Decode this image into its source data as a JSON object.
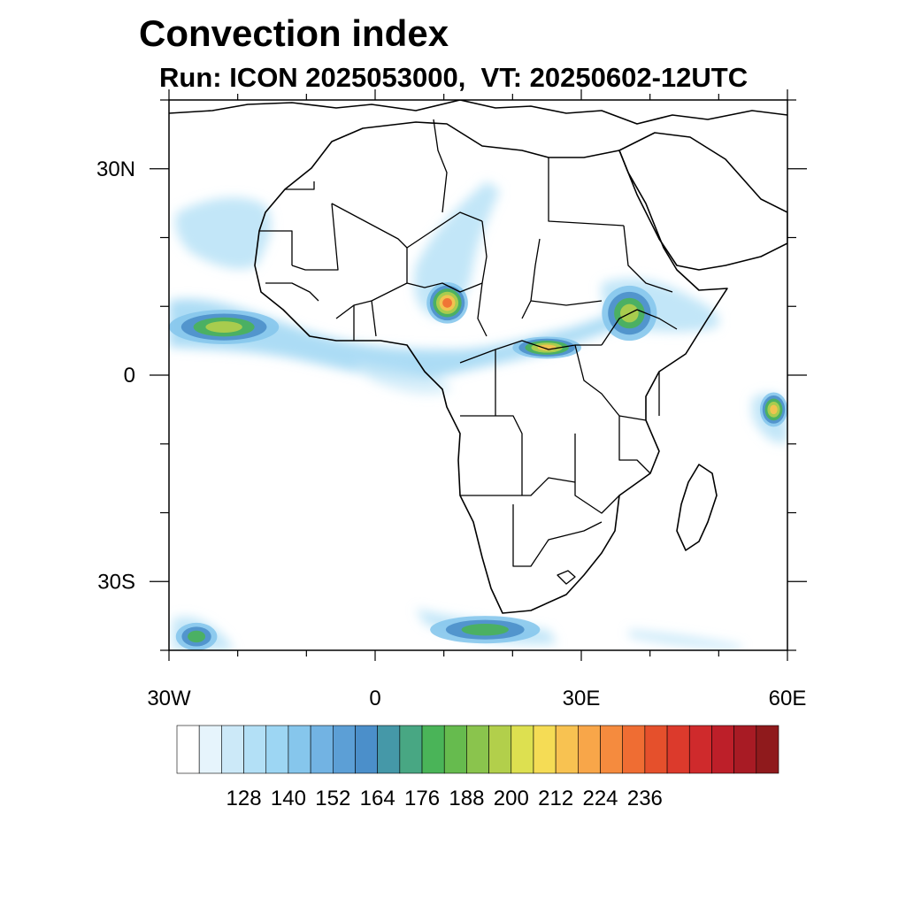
{
  "title": "Convection index",
  "subtitle": "Run: ICON 2025053000,  VT: 20250602-12UTC",
  "map": {
    "projection": "lat-lon",
    "extent": {
      "lon": [
        -30,
        60
      ],
      "lat": [
        -40,
        40
      ]
    },
    "lat_ticks": [
      {
        "value": 30,
        "label": "30N"
      },
      {
        "value": 0,
        "label": "0"
      },
      {
        "value": -30,
        "label": "30S"
      }
    ],
    "lon_ticks": [
      {
        "value": -30,
        "label": "30W"
      },
      {
        "value": 0,
        "label": "0"
      },
      {
        "value": 30,
        "label": "30E"
      },
      {
        "value": 60,
        "label": "60E"
      }
    ]
  },
  "colorbar": {
    "colors": [
      "#ffffff",
      "#e6f4fc",
      "#cce9f8",
      "#b3e0f6",
      "#9dd6f3",
      "#86c6ec",
      "#72b3e3",
      "#5c9fd6",
      "#4b8fca",
      "#4598a8",
      "#48a783",
      "#4ab458",
      "#66bb4e",
      "#8ac44d",
      "#b2cf4b",
      "#dde050",
      "#f5dc55",
      "#f8c251",
      "#f8a649",
      "#f58b3e",
      "#ef6d33",
      "#e5502c",
      "#dc3a2c",
      "#cf2a2c",
      "#bd1f29",
      "#a81b24",
      "#8f1a1c"
    ],
    "labels": [
      "128",
      "140",
      "152",
      "164",
      "176",
      "188",
      "200",
      "212",
      "224",
      "236"
    ]
  },
  "features": [
    {
      "name": "cell-atlantic-itcz",
      "cx": -22,
      "cy": 7,
      "rx": 8,
      "ry": 2.5,
      "level": 15
    },
    {
      "name": "cell-nigeria",
      "cx": 10.5,
      "cy": 10.5,
      "rx": 3,
      "ry": 3,
      "level": 22
    },
    {
      "name": "cell-central-africa",
      "cx": 25,
      "cy": 4,
      "rx": 5,
      "ry": 1.6,
      "level": 19
    },
    {
      "name": "cell-ethiopia",
      "cx": 37,
      "cy": 9,
      "rx": 4,
      "ry": 4,
      "level": 15
    },
    {
      "name": "cell-mozambique-channel",
      "cx": 58,
      "cy": -5,
      "rx": 2,
      "ry": 2.5,
      "level": 17
    },
    {
      "name": "cell-south-atlantic",
      "cx": 16,
      "cy": -37,
      "rx": 8,
      "ry": 2,
      "level": 12
    },
    {
      "name": "cell-sw-corner",
      "cx": -26,
      "cy": -38,
      "rx": 3,
      "ry": 2,
      "level": 12
    }
  ]
}
